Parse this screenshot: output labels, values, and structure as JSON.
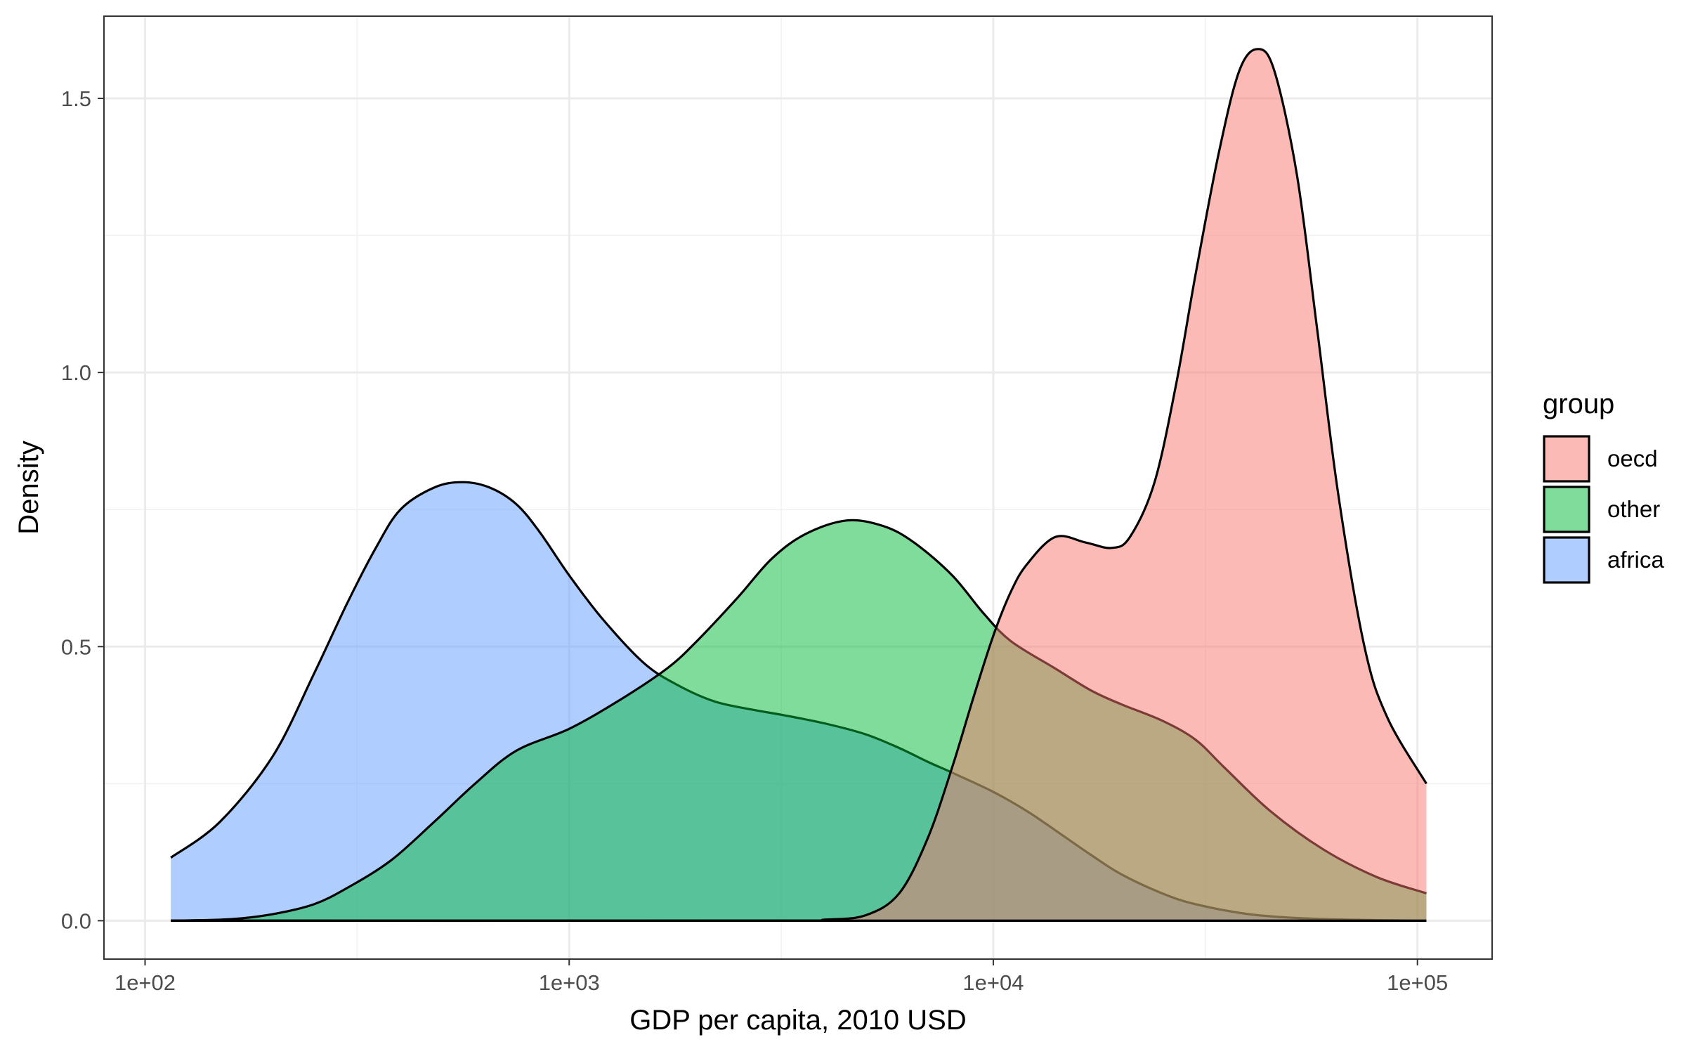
{
  "chart_data": {
    "type": "area",
    "xlabel": "GDP per capita, 2010 USD",
    "ylabel": "Density",
    "x_scale": "log10",
    "xlim": [
      80,
      150000
    ],
    "ylim": [
      -0.07,
      1.65
    ],
    "xticks": [
      {
        "value": 100,
        "label": "1e+02"
      },
      {
        "value": 1000,
        "label": "1e+03"
      },
      {
        "value": 10000,
        "label": "1e+04"
      },
      {
        "value": 100000,
        "label": "1e+05"
      }
    ],
    "yticks": [
      {
        "value": 0.0,
        "label": "0.0"
      },
      {
        "value": 0.5,
        "label": "0.5"
      },
      {
        "value": 1.0,
        "label": "1.0"
      },
      {
        "value": 1.5,
        "label": "1.5"
      }
    ],
    "grid": true,
    "legend": {
      "title": "group",
      "position": "right",
      "entries": [
        {
          "label": "oecd",
          "color": "#F8766D"
        },
        {
          "label": "other",
          "color": "#00BA38"
        },
        {
          "label": "africa",
          "color": "#619CFF"
        }
      ]
    },
    "series": [
      {
        "name": "africa",
        "color": "#619CFF",
        "points": [
          [
            115,
            0.115
          ],
          [
            150,
            0.18
          ],
          [
            200,
            0.3
          ],
          [
            250,
            0.45
          ],
          [
            300,
            0.58
          ],
          [
            350,
            0.68
          ],
          [
            400,
            0.75
          ],
          [
            480,
            0.79
          ],
          [
            560,
            0.8
          ],
          [
            650,
            0.79
          ],
          [
            750,
            0.76
          ],
          [
            850,
            0.71
          ],
          [
            1000,
            0.63
          ],
          [
            1200,
            0.55
          ],
          [
            1500,
            0.47
          ],
          [
            1800,
            0.43
          ],
          [
            2200,
            0.4
          ],
          [
            2700,
            0.385
          ],
          [
            3200,
            0.375
          ],
          [
            4000,
            0.36
          ],
          [
            5000,
            0.34
          ],
          [
            6000,
            0.315
          ],
          [
            7000,
            0.29
          ],
          [
            8000,
            0.27
          ],
          [
            10000,
            0.235
          ],
          [
            12000,
            0.2
          ],
          [
            14000,
            0.165
          ],
          [
            17000,
            0.12
          ],
          [
            20000,
            0.085
          ],
          [
            25000,
            0.05
          ],
          [
            30000,
            0.03
          ],
          [
            40000,
            0.012
          ],
          [
            55000,
            0.004
          ],
          [
            80000,
            0.001
          ],
          [
            105000,
            0.0
          ]
        ]
      },
      {
        "name": "other",
        "color": "#00BA38",
        "points": [
          [
            115,
            0.0
          ],
          [
            160,
            0.003
          ],
          [
            200,
            0.012
          ],
          [
            250,
            0.03
          ],
          [
            300,
            0.06
          ],
          [
            380,
            0.11
          ],
          [
            480,
            0.18
          ],
          [
            600,
            0.25
          ],
          [
            750,
            0.31
          ],
          [
            1000,
            0.35
          ],
          [
            1300,
            0.4
          ],
          [
            1700,
            0.46
          ],
          [
            2000,
            0.51
          ],
          [
            2500,
            0.59
          ],
          [
            3000,
            0.66
          ],
          [
            3600,
            0.705
          ],
          [
            4500,
            0.73
          ],
          [
            5500,
            0.72
          ],
          [
            6500,
            0.69
          ],
          [
            8000,
            0.63
          ],
          [
            9500,
            0.56
          ],
          [
            11000,
            0.51
          ],
          [
            14000,
            0.46
          ],
          [
            17000,
            0.42
          ],
          [
            20000,
            0.395
          ],
          [
            25000,
            0.365
          ],
          [
            30000,
            0.33
          ],
          [
            35000,
            0.28
          ],
          [
            45000,
            0.2
          ],
          [
            60000,
            0.13
          ],
          [
            80000,
            0.08
          ],
          [
            105000,
            0.05
          ]
        ]
      },
      {
        "name": "oecd",
        "color": "#F8766D",
        "points": [
          [
            115,
            0.0
          ],
          [
            3000,
            0.0
          ],
          [
            4000,
            0.002
          ],
          [
            5000,
            0.01
          ],
          [
            6000,
            0.05
          ],
          [
            7000,
            0.15
          ],
          [
            8000,
            0.28
          ],
          [
            9000,
            0.41
          ],
          [
            10000,
            0.52
          ],
          [
            11000,
            0.6
          ],
          [
            12000,
            0.65
          ],
          [
            14000,
            0.7
          ],
          [
            16500,
            0.69
          ],
          [
            19000,
            0.68
          ],
          [
            21000,
            0.7
          ],
          [
            24000,
            0.8
          ],
          [
            27000,
            0.98
          ],
          [
            30000,
            1.18
          ],
          [
            34000,
            1.4
          ],
          [
            38000,
            1.55
          ],
          [
            42000,
            1.59
          ],
          [
            46000,
            1.55
          ],
          [
            52000,
            1.36
          ],
          [
            58000,
            1.08
          ],
          [
            65000,
            0.78
          ],
          [
            75000,
            0.5
          ],
          [
            85000,
            0.37
          ],
          [
            105000,
            0.25
          ]
        ]
      }
    ]
  }
}
